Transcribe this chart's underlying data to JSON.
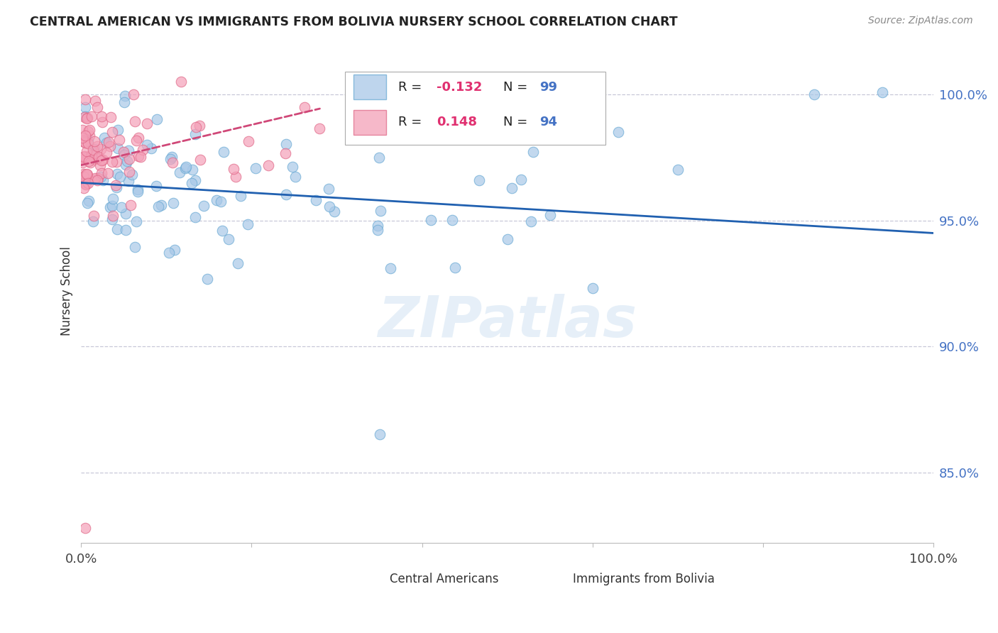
{
  "title": "CENTRAL AMERICAN VS IMMIGRANTS FROM BOLIVIA NURSERY SCHOOL CORRELATION CHART",
  "source": "Source: ZipAtlas.com",
  "ylabel": "Nursery School",
  "ytick_labels": [
    "100.0%",
    "95.0%",
    "90.0%",
    "85.0%"
  ],
  "ytick_values": [
    1.0,
    0.95,
    0.9,
    0.85
  ],
  "xmin": 0.0,
  "xmax": 1.0,
  "ymin": 0.822,
  "ymax": 1.022,
  "legend_R_blue": "-0.132",
  "legend_N_blue": "99",
  "legend_R_pink": "0.148",
  "legend_N_pink": "94",
  "blue_color": "#a8c8e8",
  "blue_edge_color": "#6aaad4",
  "pink_color": "#f4a0b8",
  "pink_edge_color": "#e06888",
  "blue_line_color": "#2060b0",
  "pink_line_color": "#d04878",
  "grid_color": "#c8c8d8",
  "background_color": "#ffffff",
  "watermark": "ZIPatlas",
  "title_color": "#222222",
  "source_color": "#888888",
  "ytick_color": "#4472c4",
  "xtick_color": "#444444"
}
